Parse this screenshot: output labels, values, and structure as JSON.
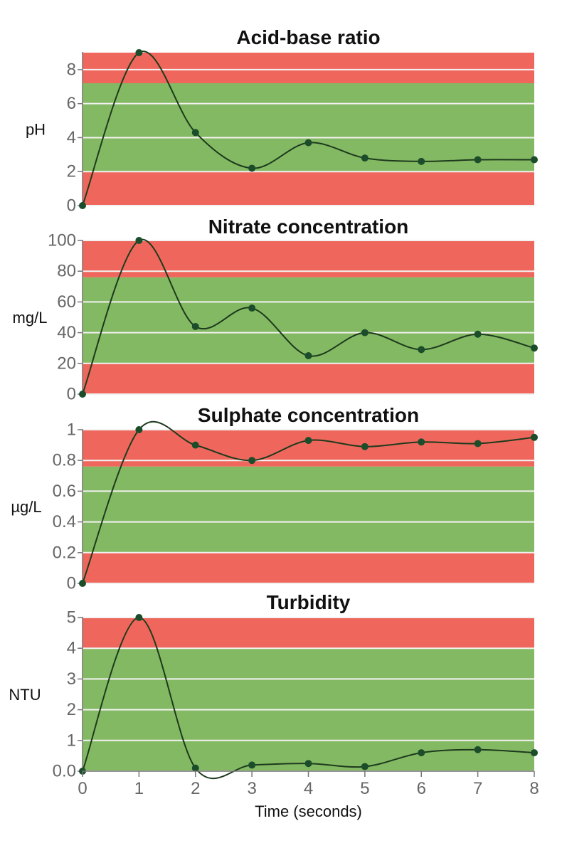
{
  "colors": {
    "danger_band": "#ef675c",
    "safe_band": "#84b963",
    "line": "#1d3a1d",
    "point": "#1b4d2a",
    "grid": "#f2f2f2",
    "axis": "#777777",
    "tick_text": "#666666"
  },
  "x_axis": {
    "label": "Time (seconds)",
    "ticks": [
      "0",
      "1",
      "2",
      "3",
      "4",
      "5",
      "6",
      "7",
      "8"
    ],
    "range": [
      0,
      8
    ]
  },
  "chart_data": [
    {
      "type": "line",
      "title": "Acid-base ratio",
      "ylabel": "pH",
      "ylim": [
        0,
        9
      ],
      "yticks": [
        0,
        2,
        4,
        6,
        8
      ],
      "ytick_labels": [
        "0",
        "2",
        "4",
        "6",
        "8"
      ],
      "bands": [
        {
          "from": 7.2,
          "to": 9,
          "kind": "danger"
        },
        {
          "from": 2,
          "to": 7.2,
          "kind": "safe"
        },
        {
          "from": 0,
          "to": 2,
          "kind": "danger"
        }
      ],
      "x": [
        0,
        1,
        2,
        3,
        4,
        5,
        6,
        7,
        8
      ],
      "values": [
        0,
        9,
        4.3,
        2.2,
        3.7,
        2.8,
        2.6,
        2.7,
        2.7
      ]
    },
    {
      "type": "line",
      "title": "Nitrate concentration",
      "ylabel": "mg/L",
      "ylim": [
        0,
        100
      ],
      "yticks": [
        0,
        20,
        40,
        60,
        80,
        100
      ],
      "ytick_labels": [
        "0",
        "20",
        "40",
        "60",
        "80",
        "100"
      ],
      "bands": [
        {
          "from": 76,
          "to": 100,
          "kind": "danger"
        },
        {
          "from": 20,
          "to": 76,
          "kind": "safe"
        },
        {
          "from": 0,
          "to": 20,
          "kind": "danger"
        }
      ],
      "x": [
        0,
        1,
        2,
        3,
        4,
        5,
        6,
        7,
        8
      ],
      "values": [
        0,
        100,
        44,
        56,
        25,
        40,
        29,
        39,
        30
      ]
    },
    {
      "type": "line",
      "title": "Sulphate concentration",
      "ylabel": "µg/L",
      "ylim": [
        0,
        1
      ],
      "yticks": [
        0,
        0.2,
        0.4,
        0.6,
        0.8,
        1
      ],
      "ytick_labels": [
        "0",
        "0.2",
        "0.4",
        "0.6",
        "0.8",
        "1"
      ],
      "bands": [
        {
          "from": 0.76,
          "to": 1,
          "kind": "danger"
        },
        {
          "from": 0.2,
          "to": 0.76,
          "kind": "safe"
        },
        {
          "from": 0,
          "to": 0.2,
          "kind": "danger"
        }
      ],
      "x": [
        0,
        1,
        2,
        3,
        4,
        5,
        6,
        7,
        8
      ],
      "values": [
        0,
        1,
        0.9,
        0.8,
        0.93,
        0.89,
        0.92,
        0.91,
        0.95
      ]
    },
    {
      "type": "line",
      "title": "Turbidity",
      "ylabel": "NTU",
      "ylim": [
        0,
        5
      ],
      "yticks": [
        0,
        1,
        2,
        3,
        4,
        5
      ],
      "ytick_labels": [
        "0.0",
        "1",
        "2",
        "3",
        "4",
        "5"
      ],
      "bands": [
        {
          "from": 4,
          "to": 5,
          "kind": "danger"
        },
        {
          "from": 0,
          "to": 4,
          "kind": "safe"
        }
      ],
      "x": [
        0,
        1,
        2,
        3,
        4,
        5,
        6,
        7,
        8
      ],
      "values": [
        0,
        5,
        0.1,
        0.2,
        0.25,
        0.15,
        0.6,
        0.7,
        0.6
      ]
    }
  ]
}
